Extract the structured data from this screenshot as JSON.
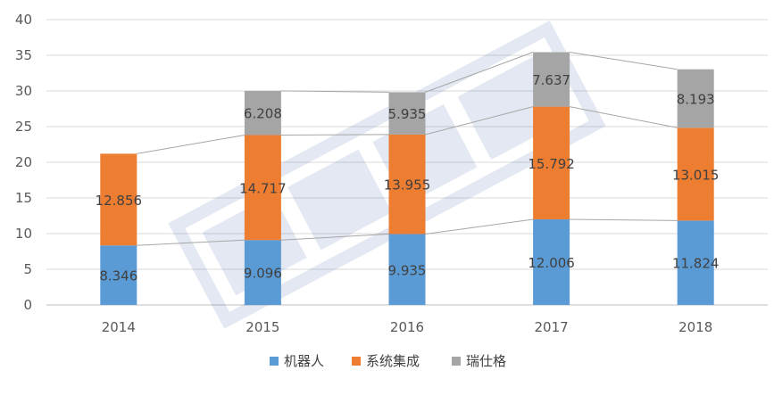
{
  "chart_data": {
    "type": "bar",
    "stacked": true,
    "categories": [
      "2014",
      "2015",
      "2016",
      "2017",
      "2018"
    ],
    "series": [
      {
        "name": "机器人",
        "color": "#5B9BD5",
        "values": [
          8.346,
          9.096,
          9.935,
          12.006,
          11.824
        ],
        "labels": [
          "8.346",
          "9.096",
          "9.935",
          "12.006",
          "11.824"
        ]
      },
      {
        "name": "系统集成",
        "color": "#ED7D31",
        "values": [
          12.856,
          14.717,
          13.955,
          15.792,
          13.015
        ],
        "labels": [
          "12.856",
          "14.717",
          "13.955",
          "15.792",
          "13.015"
        ]
      },
      {
        "name": "瑞仕格",
        "color": "#A5A5A5",
        "values": [
          null,
          6.208,
          5.935,
          7.637,
          8.193
        ],
        "labels": [
          "",
          "6.208",
          "5.935",
          "7.637",
          "8.193"
        ]
      }
    ],
    "ylim": [
      0,
      40
    ],
    "yticks": [
      "0",
      "5",
      "10",
      "15",
      "20",
      "25",
      "30",
      "35",
      "40"
    ],
    "title": "",
    "xlabel": "",
    "ylabel": "",
    "grid": true,
    "series_lines": true,
    "legend": "bottom-center"
  }
}
